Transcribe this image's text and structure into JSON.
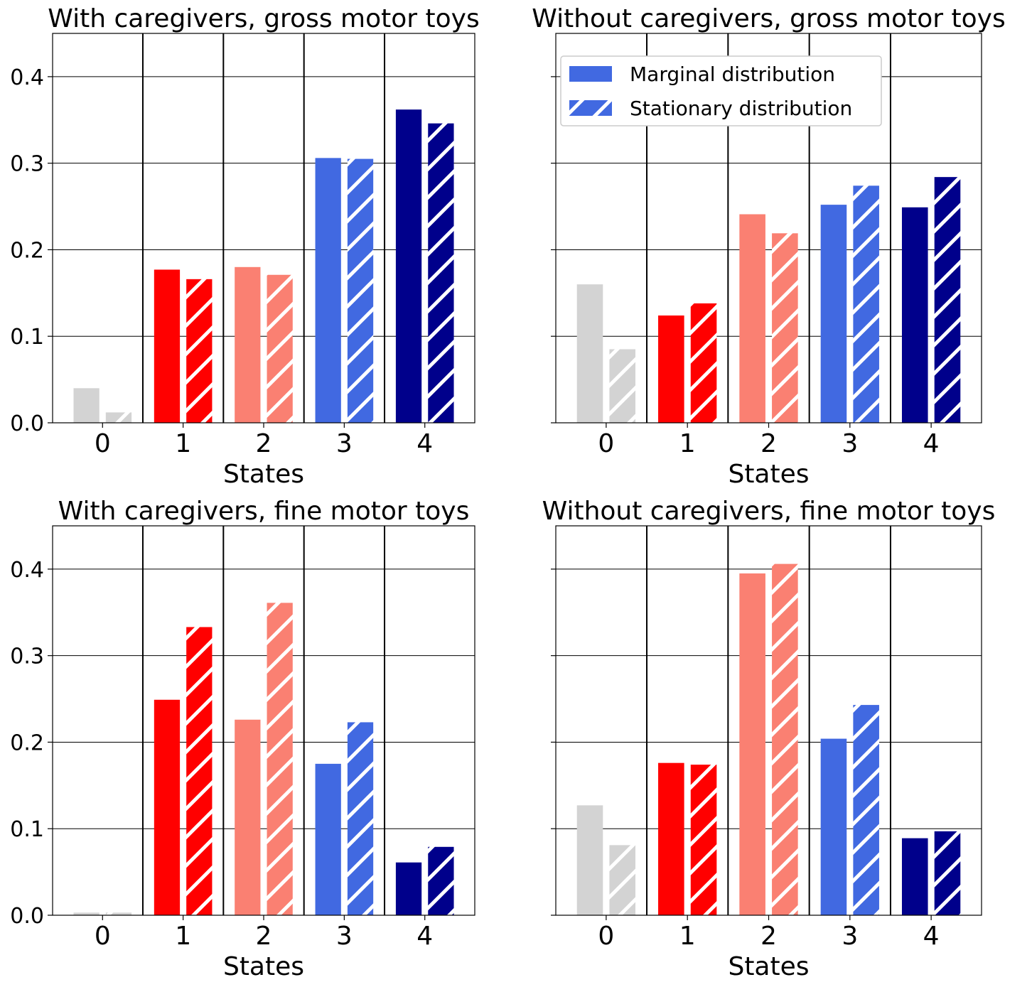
{
  "figure": {
    "legend": {
      "placement": "upper-right of panel 2",
      "entries": [
        {
          "label": "Marginal distribution",
          "style": "solid"
        },
        {
          "label": "Stationary distribution",
          "style": "hatched"
        }
      ]
    },
    "colors": {
      "state_0": "#d3d3d3",
      "state_1": "#ff0000",
      "state_2": "#fa8072",
      "state_3": "#4169e1",
      "state_4": "#00008b"
    }
  },
  "chart_data": [
    {
      "type": "bar",
      "title": "With caregivers, gross motor toys",
      "xlabel": "States",
      "ylabel": "",
      "categories": [
        "0",
        "1",
        "2",
        "3",
        "4"
      ],
      "ylim": [
        0,
        0.45
      ],
      "yticks": [
        "0.0",
        "0.1",
        "0.2",
        "0.3",
        "0.4"
      ],
      "grid": true,
      "series": [
        {
          "name": "Marginal distribution",
          "values": [
            0.04,
            0.177,
            0.18,
            0.306,
            0.362
          ]
        },
        {
          "name": "Stationary distribution",
          "values": [
            0.012,
            0.166,
            0.171,
            0.305,
            0.346
          ]
        }
      ]
    },
    {
      "type": "bar",
      "title": "Without caregivers, gross motor toys",
      "xlabel": "States",
      "ylabel": "",
      "categories": [
        "0",
        "1",
        "2",
        "3",
        "4"
      ],
      "ylim": [
        0,
        0.45
      ],
      "yticks": [],
      "grid": true,
      "series": [
        {
          "name": "Marginal distribution",
          "values": [
            0.16,
            0.124,
            0.241,
            0.252,
            0.249
          ]
        },
        {
          "name": "Stationary distribution",
          "values": [
            0.085,
            0.138,
            0.219,
            0.274,
            0.284
          ]
        }
      ]
    },
    {
      "type": "bar",
      "title": "With caregivers, fine motor toys",
      "xlabel": "States",
      "ylabel": "",
      "categories": [
        "0",
        "1",
        "2",
        "3",
        "4"
      ],
      "ylim": [
        0,
        0.45
      ],
      "yticks": [
        "0.0",
        "0.1",
        "0.2",
        "0.3",
        "0.4"
      ],
      "grid": true,
      "series": [
        {
          "name": "Marginal distribution",
          "values": [
            0.003,
            0.249,
            0.226,
            0.175,
            0.061
          ]
        },
        {
          "name": "Stationary distribution",
          "values": [
            0.003,
            0.333,
            0.361,
            0.223,
            0.079
          ]
        }
      ]
    },
    {
      "type": "bar",
      "title": "Without caregivers, fine motor toys",
      "xlabel": "States",
      "ylabel": "",
      "categories": [
        "0",
        "1",
        "2",
        "3",
        "4"
      ],
      "ylim": [
        0,
        0.45
      ],
      "yticks": [],
      "grid": true,
      "series": [
        {
          "name": "Marginal distribution",
          "values": [
            0.127,
            0.176,
            0.395,
            0.204,
            0.089
          ]
        },
        {
          "name": "Stationary distribution",
          "values": [
            0.081,
            0.174,
            0.406,
            0.243,
            0.097
          ]
        }
      ]
    }
  ]
}
